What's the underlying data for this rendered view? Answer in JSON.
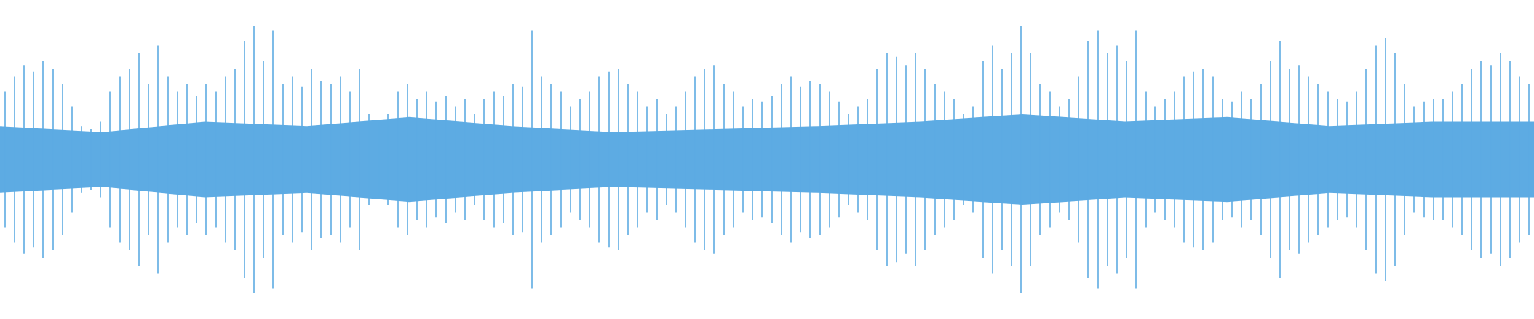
{
  "chart_data": {
    "type": "waveform",
    "color": "#5dabe3",
    "ylim": [
      -1,
      1
    ],
    "values": [
      0.45,
      0.55,
      0.62,
      0.58,
      0.65,
      0.6,
      0.5,
      0.35,
      0.22,
      0.2,
      0.25,
      0.45,
      0.55,
      0.6,
      0.7,
      0.5,
      0.75,
      0.55,
      0.45,
      0.5,
      0.42,
      0.5,
      0.45,
      0.55,
      0.6,
      0.78,
      0.88,
      0.65,
      0.85,
      0.5,
      0.55,
      0.48,
      0.6,
      0.52,
      0.5,
      0.55,
      0.45,
      0.6,
      0.3,
      0.25,
      0.3,
      0.45,
      0.5,
      0.4,
      0.45,
      0.38,
      0.42,
      0.35,
      0.4,
      0.3,
      0.4,
      0.45,
      0.42,
      0.5,
      0.48,
      0.85,
      0.55,
      0.5,
      0.45,
      0.35,
      0.4,
      0.45,
      0.55,
      0.58,
      0.6,
      0.5,
      0.45,
      0.35,
      0.4,
      0.3,
      0.35,
      0.45,
      0.55,
      0.6,
      0.62,
      0.5,
      0.45,
      0.35,
      0.4,
      0.38,
      0.42,
      0.5,
      0.55,
      0.48,
      0.52,
      0.5,
      0.45,
      0.38,
      0.3,
      0.35,
      0.4,
      0.6,
      0.7,
      0.68,
      0.62,
      0.7,
      0.6,
      0.5,
      0.45,
      0.4,
      0.3,
      0.35,
      0.65,
      0.75,
      0.6,
      0.7,
      0.88,
      0.7,
      0.5,
      0.45,
      0.35,
      0.4,
      0.55,
      0.78,
      0.85,
      0.7,
      0.75,
      0.65,
      0.85,
      0.45,
      0.35,
      0.4,
      0.45,
      0.55,
      0.58,
      0.6,
      0.55,
      0.4,
      0.38,
      0.45,
      0.4,
      0.5,
      0.65,
      0.78,
      0.6,
      0.62,
      0.55,
      0.5,
      0.45,
      0.4,
      0.38,
      0.45,
      0.6,
      0.75,
      0.8,
      0.7,
      0.5,
      0.35,
      0.38,
      0.4,
      0.4,
      0.45,
      0.5,
      0.6,
      0.65,
      0.62,
      0.7,
      0.65,
      0.55,
      0.5
    ],
    "core": [
      0.22,
      0.18,
      0.25,
      0.22,
      0.28,
      0.22,
      0.18,
      0.2,
      0.22,
      0.25,
      0.3,
      0.25,
      0.28,
      0.22,
      0.25,
      0.25
    ]
  }
}
